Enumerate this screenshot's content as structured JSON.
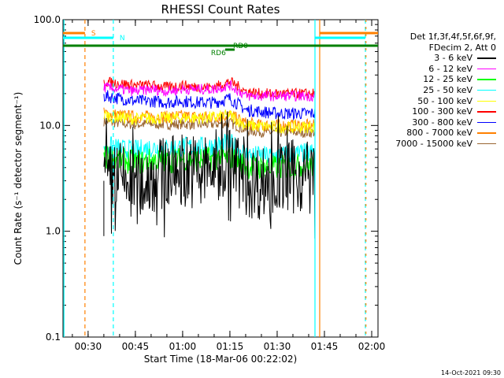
{
  "chart_data": {
    "type": "line",
    "title": "RHESSI Count Rates",
    "xlabel": "Start Time (18-Mar-06 00:22:02)",
    "ylabel": "Count Rate (s⁻¹ detector segment⁻¹)",
    "y_scale": "log",
    "ylim": [
      0.1,
      100
    ],
    "y_ticks": [
      "0.1",
      "1.0",
      "10.0",
      "100.0"
    ],
    "xlim": [
      "00:22:02",
      "02:02"
    ],
    "x_ticks": [
      "00:30",
      "00:45",
      "01:00",
      "01:15",
      "01:30",
      "01:45",
      "02:00"
    ],
    "legend_placement": "right",
    "legend_header": [
      "Det 1f,3f,4f,5f,6f,9f,",
      "FDecim 2, Att 0"
    ],
    "series": [
      {
        "name": "3 - 6 keV",
        "color": "#000000",
        "x": [
          "00:35",
          "00:40",
          "00:45",
          "00:50",
          "00:55",
          "01:00",
          "01:05",
          "01:10",
          "01:15",
          "01:20",
          "01:25",
          "01:30",
          "01:35",
          "01:40"
        ],
        "values": [
          3.0,
          3.2,
          2.5,
          3.3,
          3.5,
          4.0,
          3.6,
          4.0,
          4.5,
          3.0,
          2.9,
          3.2,
          3.3,
          3.4
        ]
      },
      {
        "name": "6 - 12 keV",
        "color": "#ff00ff",
        "x": [
          "00:35",
          "00:40",
          "00:45",
          "00:50",
          "00:55",
          "01:00",
          "01:05",
          "01:10",
          "01:15",
          "01:20",
          "01:25",
          "01:30",
          "01:35",
          "01:40"
        ],
        "values": [
          23,
          22,
          21,
          22,
          21,
          22,
          22,
          22,
          24,
          19,
          19,
          19,
          19,
          19
        ]
      },
      {
        "name": "12 - 25 keV",
        "color": "#00ff00",
        "x": [
          "00:35",
          "00:40",
          "00:45",
          "00:50",
          "00:55",
          "01:00",
          "01:05",
          "01:10",
          "01:15",
          "01:20",
          "01:25",
          "01:30",
          "01:35",
          "01:40"
        ],
        "values": [
          5.0,
          4.8,
          4.4,
          4.7,
          4.6,
          4.8,
          4.7,
          4.9,
          5.0,
          4.1,
          4.0,
          4.0,
          4.1,
          4.2
        ]
      },
      {
        "name": "25 - 50 keV",
        "color": "#00ffff",
        "x": [
          "00:35",
          "00:40",
          "00:45",
          "00:50",
          "00:55",
          "01:00",
          "01:05",
          "01:10",
          "01:15",
          "01:20",
          "01:25",
          "01:30",
          "01:35",
          "01:40"
        ],
        "values": [
          6.5,
          6.0,
          5.8,
          6.2,
          6.0,
          6.3,
          6.2,
          6.4,
          6.8,
          5.3,
          5.1,
          5.2,
          5.3,
          5.5
        ]
      },
      {
        "name": "50 - 100 keV",
        "color": "#ffff00",
        "x": [
          "00:35",
          "00:40",
          "00:45",
          "00:50",
          "00:55",
          "01:00",
          "01:05",
          "01:10",
          "01:15",
          "01:20",
          "01:25",
          "01:30",
          "01:35",
          "01:40"
        ],
        "values": [
          12.5,
          12.0,
          11.5,
          11.8,
          11.7,
          11.9,
          11.8,
          11.9,
          12.5,
          10.0,
          9.8,
          9.7,
          9.6,
          9.7
        ]
      },
      {
        "name": "100 - 300 keV",
        "color": "#ff0000",
        "x": [
          "00:35",
          "00:40",
          "00:45",
          "00:50",
          "00:55",
          "01:00",
          "01:05",
          "01:10",
          "01:15",
          "01:20",
          "01:25",
          "01:30",
          "01:35",
          "01:40"
        ],
        "values": [
          26,
          25,
          24,
          24,
          23,
          24,
          23,
          23,
          26,
          21,
          20,
          20,
          20,
          20
        ]
      },
      {
        "name": "300 - 800 keV",
        "color": "#0000ff",
        "x": [
          "00:35",
          "00:40",
          "00:45",
          "00:50",
          "00:55",
          "01:00",
          "01:05",
          "01:10",
          "01:15",
          "01:20",
          "01:25",
          "01:30",
          "01:35",
          "01:40"
        ],
        "values": [
          19,
          18,
          17,
          17,
          16.5,
          17,
          16.5,
          16.5,
          18,
          14,
          13.5,
          13,
          13,
          13
        ]
      },
      {
        "name": "800 - 7000 keV",
        "color": "#ff8000",
        "x": [
          "00:35",
          "00:40",
          "00:45",
          "00:50",
          "00:55",
          "01:00",
          "01:05",
          "01:10",
          "01:15",
          "01:20",
          "01:25",
          "01:30",
          "01:35",
          "01:40"
        ],
        "values": [
          13,
          12.5,
          12,
          12.2,
          12,
          12.3,
          12,
          12.1,
          12.5,
          10.5,
          10,
          10,
          10,
          10
        ]
      },
      {
        "name": "7000 - 15000 keV",
        "color": "#996633",
        "x": [
          "00:35",
          "00:40",
          "00:45",
          "00:50",
          "00:55",
          "01:00",
          "01:05",
          "01:10",
          "01:15",
          "01:20",
          "01:25",
          "01:30",
          "01:35",
          "01:40"
        ],
        "values": [
          11,
          10.5,
          10.2,
          10.4,
          10.2,
          10.3,
          10.2,
          10.3,
          10.6,
          9.0,
          8.7,
          8.6,
          8.6,
          8.6
        ]
      }
    ],
    "flag_labels": [
      "S",
      "N",
      "RD0",
      "RD6"
    ],
    "footer_timestamp": "14-Oct-2021 09:30"
  }
}
